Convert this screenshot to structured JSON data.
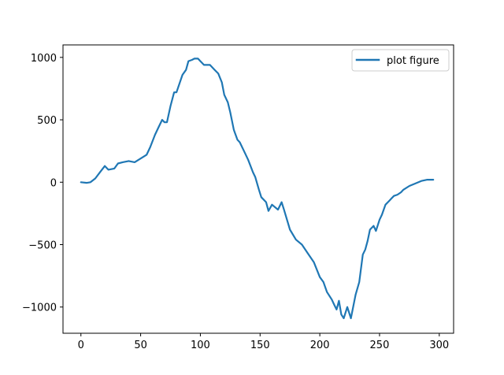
{
  "chart_data": {
    "type": "line",
    "title": "",
    "xlabel": "",
    "ylabel": "",
    "xlim": [
      -15,
      312
    ],
    "ylim": [
      -1210,
      1100
    ],
    "xticks": [
      0,
      50,
      100,
      150,
      200,
      250,
      300
    ],
    "yticks": [
      -1000,
      -500,
      0,
      500,
      1000
    ],
    "xtick_labels": [
      "0",
      "50",
      "100",
      "150",
      "200",
      "250",
      "300"
    ],
    "ytick_labels": [
      "−1000",
      "−500",
      "0",
      "500",
      "1000"
    ],
    "grid": false,
    "legend_position": "upper right",
    "series": [
      {
        "name": "plot figure",
        "color": "#1f77b4",
        "x": [
          0,
          5,
          8,
          12,
          16,
          20,
          23,
          28,
          31,
          35,
          40,
          45,
          50,
          55,
          58,
          62,
          65,
          68,
          70,
          72,
          75,
          78,
          80,
          85,
          88,
          90,
          93,
          95,
          98,
          100,
          103,
          108,
          112,
          115,
          118,
          120,
          123,
          125,
          128,
          131,
          133,
          137,
          140,
          144,
          146,
          149,
          151,
          155,
          157,
          160,
          165,
          168,
          170,
          175,
          180,
          185,
          190,
          195,
          200,
          203,
          206,
          210,
          212,
          214,
          216,
          218,
          220,
          223,
          226,
          230,
          233,
          236,
          238,
          240,
          242,
          245,
          247,
          250,
          252,
          255,
          258,
          260,
          262,
          265,
          268,
          270,
          275,
          280,
          285,
          290,
          295
        ],
        "y": [
          0,
          -5,
          0,
          30,
          80,
          130,
          100,
          110,
          150,
          160,
          170,
          160,
          190,
          220,
          280,
          380,
          440,
          500,
          480,
          480,
          610,
          720,
          720,
          860,
          900,
          970,
          980,
          990,
          990,
          970,
          940,
          940,
          900,
          870,
          800,
          700,
          640,
          560,
          420,
          340,
          320,
          240,
          180,
          80,
          40,
          -60,
          -120,
          -160,
          -230,
          -180,
          -220,
          -160,
          -220,
          -380,
          -460,
          -500,
          -570,
          -640,
          -760,
          -800,
          -880,
          -940,
          -980,
          -1020,
          -950,
          -1060,
          -1090,
          -1000,
          -1090,
          -900,
          -800,
          -580,
          -540,
          -470,
          -380,
          -350,
          -390,
          -300,
          -260,
          -180,
          -150,
          -130,
          -110,
          -100,
          -80,
          -60,
          -30,
          -10,
          10,
          20,
          20
        ]
      }
    ]
  }
}
